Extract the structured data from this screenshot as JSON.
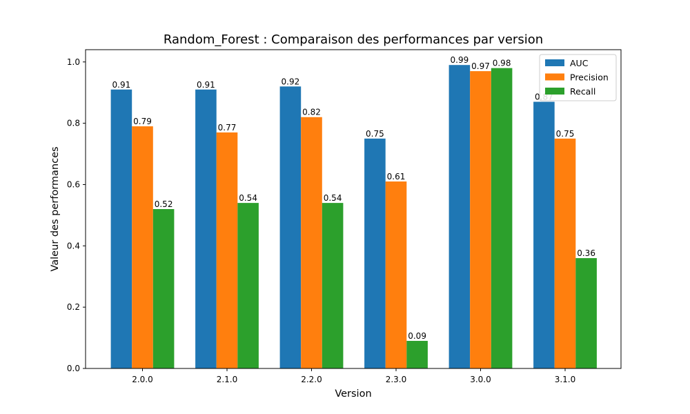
{
  "chart_data": {
    "type": "bar",
    "title": "Random_Forest : Comparaison des performances par version",
    "xlabel": "Version",
    "ylabel": "Valeur des performances",
    "categories": [
      "2.0.0",
      "2.1.0",
      "2.2.0",
      "2.3.0",
      "3.0.0",
      "3.1.0"
    ],
    "series": [
      {
        "name": "AUC",
        "color": "#1f77b4",
        "values": [
          0.91,
          0.91,
          0.92,
          0.75,
          0.99,
          0.87
        ]
      },
      {
        "name": "Precision",
        "color": "#ff7f0e",
        "values": [
          0.79,
          0.77,
          0.82,
          0.61,
          0.97,
          0.75
        ]
      },
      {
        "name": "Recall",
        "color": "#2ca02c",
        "values": [
          0.52,
          0.54,
          0.54,
          0.09,
          0.98,
          0.36
        ]
      }
    ],
    "ylim": [
      0,
      1.04
    ],
    "yticks": [
      "0.0",
      "0.2",
      "0.4",
      "0.6",
      "0.8",
      "1.0"
    ],
    "grid": false,
    "legend_position": "top-right"
  }
}
